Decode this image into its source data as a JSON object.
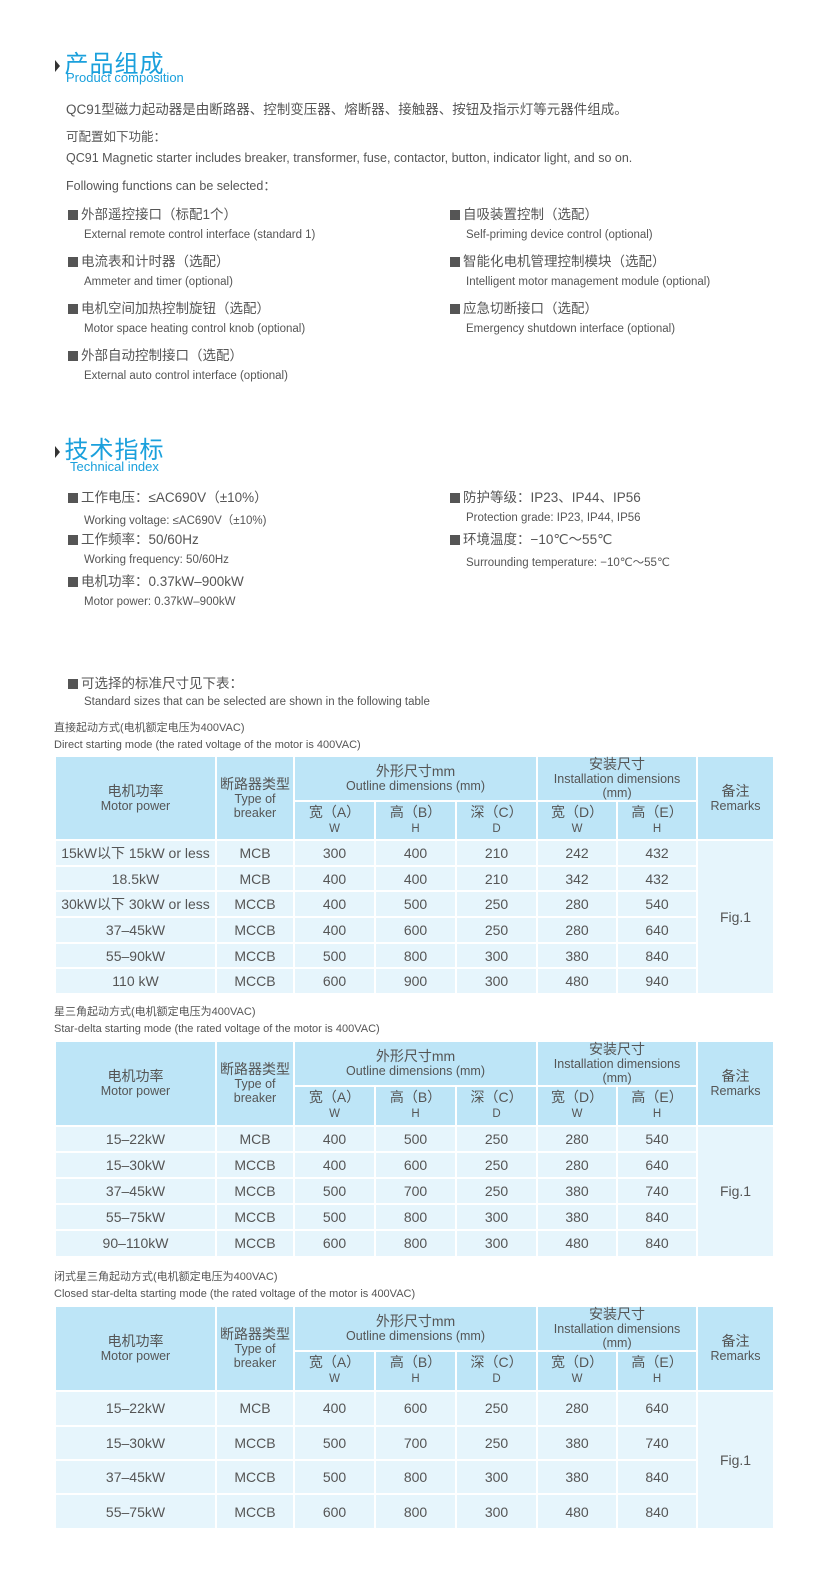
{
  "composition": {
    "title": "产品组成",
    "subtitle": "Product composition",
    "intro_cn": "QC91型磁力起动器是由断路器、控制变压器、熔断器、接触器、按钮及指示灯等元器件组成。",
    "config_cn": "可配置如下功能：",
    "intro_en": "QC91 Magnetic starter includes breaker, transformer, fuse, contactor, button, indicator light, and so on.",
    "config_en": "Following functions can be selected：",
    "left": [
      {
        "cn": "外部遥控接口（标配1个）",
        "en": "External remote control interface (standard 1)"
      },
      {
        "cn": "电流表和计时器（选配）",
        "en": "Ammeter and timer (optional)"
      },
      {
        "cn": "电机空间加热控制旋钮（选配）",
        "en": "Motor space heating control knob (optional)"
      },
      {
        "cn": "外部自动控制接口（选配）",
        "en": "External auto control interface (optional)"
      }
    ],
    "right": [
      {
        "cn": "自吸装置控制（选配）",
        "en": "Self-priming device control (optional)"
      },
      {
        "cn": "智能化电机管理控制模块（选配）",
        "en": "Intelligent motor management module (optional)"
      },
      {
        "cn": "应急切断接口（选配）",
        "en": "Emergency shutdown interface (optional)"
      }
    ]
  },
  "technical": {
    "title": "技术指标",
    "subtitle": "Technical index",
    "left": [
      {
        "cn": "工作电压：≤AC690V（±10%）",
        "en": "Working voltage: ≤AC690V（±10%)"
      },
      {
        "cn": "工作频率：50/60Hz",
        "en": "Working frequency: 50/60Hz"
      },
      {
        "cn": "电机功率：0.37kW–900kW",
        "en": "Motor power: 0.37kW–900kW"
      }
    ],
    "right": [
      {
        "cn": "防护等级：IP23、IP44、IP56",
        "en": "Protection grade: IP23, IP44, IP56"
      },
      {
        "cn": "环境温度：−10℃～55℃",
        "en": "Surrounding temperature: −10℃～55℃"
      }
    ],
    "sizes_cn": "可选择的标准尺寸见下表：",
    "sizes_en": "Standard sizes that can be selected are shown in the following table"
  },
  "header": {
    "power_cn": "电机功率",
    "power_en": "Motor power",
    "breaker_cn": "断路器类型",
    "breaker_en": "Type of breaker",
    "outline_cn": "外形尺寸mm",
    "outline_en": "Outline dimensions (mm)",
    "install_cn": "安装尺寸",
    "install_en": "Installation dimensions (mm)",
    "remarks_cn": "备注",
    "remarks_en": "Remarks",
    "a": "宽（A）",
    "a2": "W",
    "b": "高（B）",
    "b2": "H",
    "c": "深（C）",
    "c2": "D",
    "d": "宽（D）",
    "d2": "W",
    "e": "高（E）",
    "e2": "H"
  },
  "tables": [
    {
      "caption_cn": "直接起动方式(电机额定电压为400VAC)",
      "caption_en": "Direct starting mode (the rated voltage of the motor is 400VAC)",
      "remark": "Fig.1",
      "rows": [
        [
          "15kW以下 15kW or less",
          "MCB",
          "300",
          "400",
          "210",
          "242",
          "432"
        ],
        [
          "18.5kW",
          "MCB",
          "400",
          "400",
          "210",
          "342",
          "432"
        ],
        [
          "30kW以下 30kW or less",
          "MCCB",
          "400",
          "500",
          "250",
          "280",
          "540"
        ],
        [
          "37–45kW",
          "MCCB",
          "400",
          "600",
          "250",
          "280",
          "640"
        ],
        [
          "55–90kW",
          "MCCB",
          "500",
          "800",
          "300",
          "380",
          "840"
        ],
        [
          "110 kW",
          "MCCB",
          "600",
          "900",
          "300",
          "480",
          "940"
        ]
      ]
    },
    {
      "caption_cn": "星三角起动方式(电机额定电压为400VAC)",
      "caption_en": "Star-delta starting mode (the rated voltage of the motor is 400VAC)",
      "remark": "Fig.1",
      "rows": [
        [
          "15–22kW",
          "MCB",
          "400",
          "500",
          "250",
          "280",
          "540"
        ],
        [
          "15–30kW",
          "MCCB",
          "400",
          "600",
          "250",
          "280",
          "640"
        ],
        [
          "37–45kW",
          "MCCB",
          "500",
          "700",
          "250",
          "380",
          "740"
        ],
        [
          "55–75kW",
          "MCCB",
          "500",
          "800",
          "300",
          "380",
          "840"
        ],
        [
          "90–110kW",
          "MCCB",
          "600",
          "800",
          "300",
          "480",
          "840"
        ]
      ]
    },
    {
      "caption_cn": "闭式星三角起动方式(电机额定电压为400VAC)",
      "caption_en": "Closed star-delta starting mode (the rated voltage of the motor is 400VAC)",
      "remark": "Fig.1",
      "rows": [
        [
          "15–22kW",
          "MCB",
          "400",
          "600",
          "250",
          "280",
          "640"
        ],
        [
          "15–30kW",
          "MCCB",
          "500",
          "700",
          "250",
          "380",
          "740"
        ],
        [
          "37–45kW",
          "MCCB",
          "500",
          "800",
          "300",
          "380",
          "840"
        ],
        [
          "55–75kW",
          "MCCB",
          "600",
          "800",
          "300",
          "480",
          "840"
        ]
      ]
    }
  ]
}
